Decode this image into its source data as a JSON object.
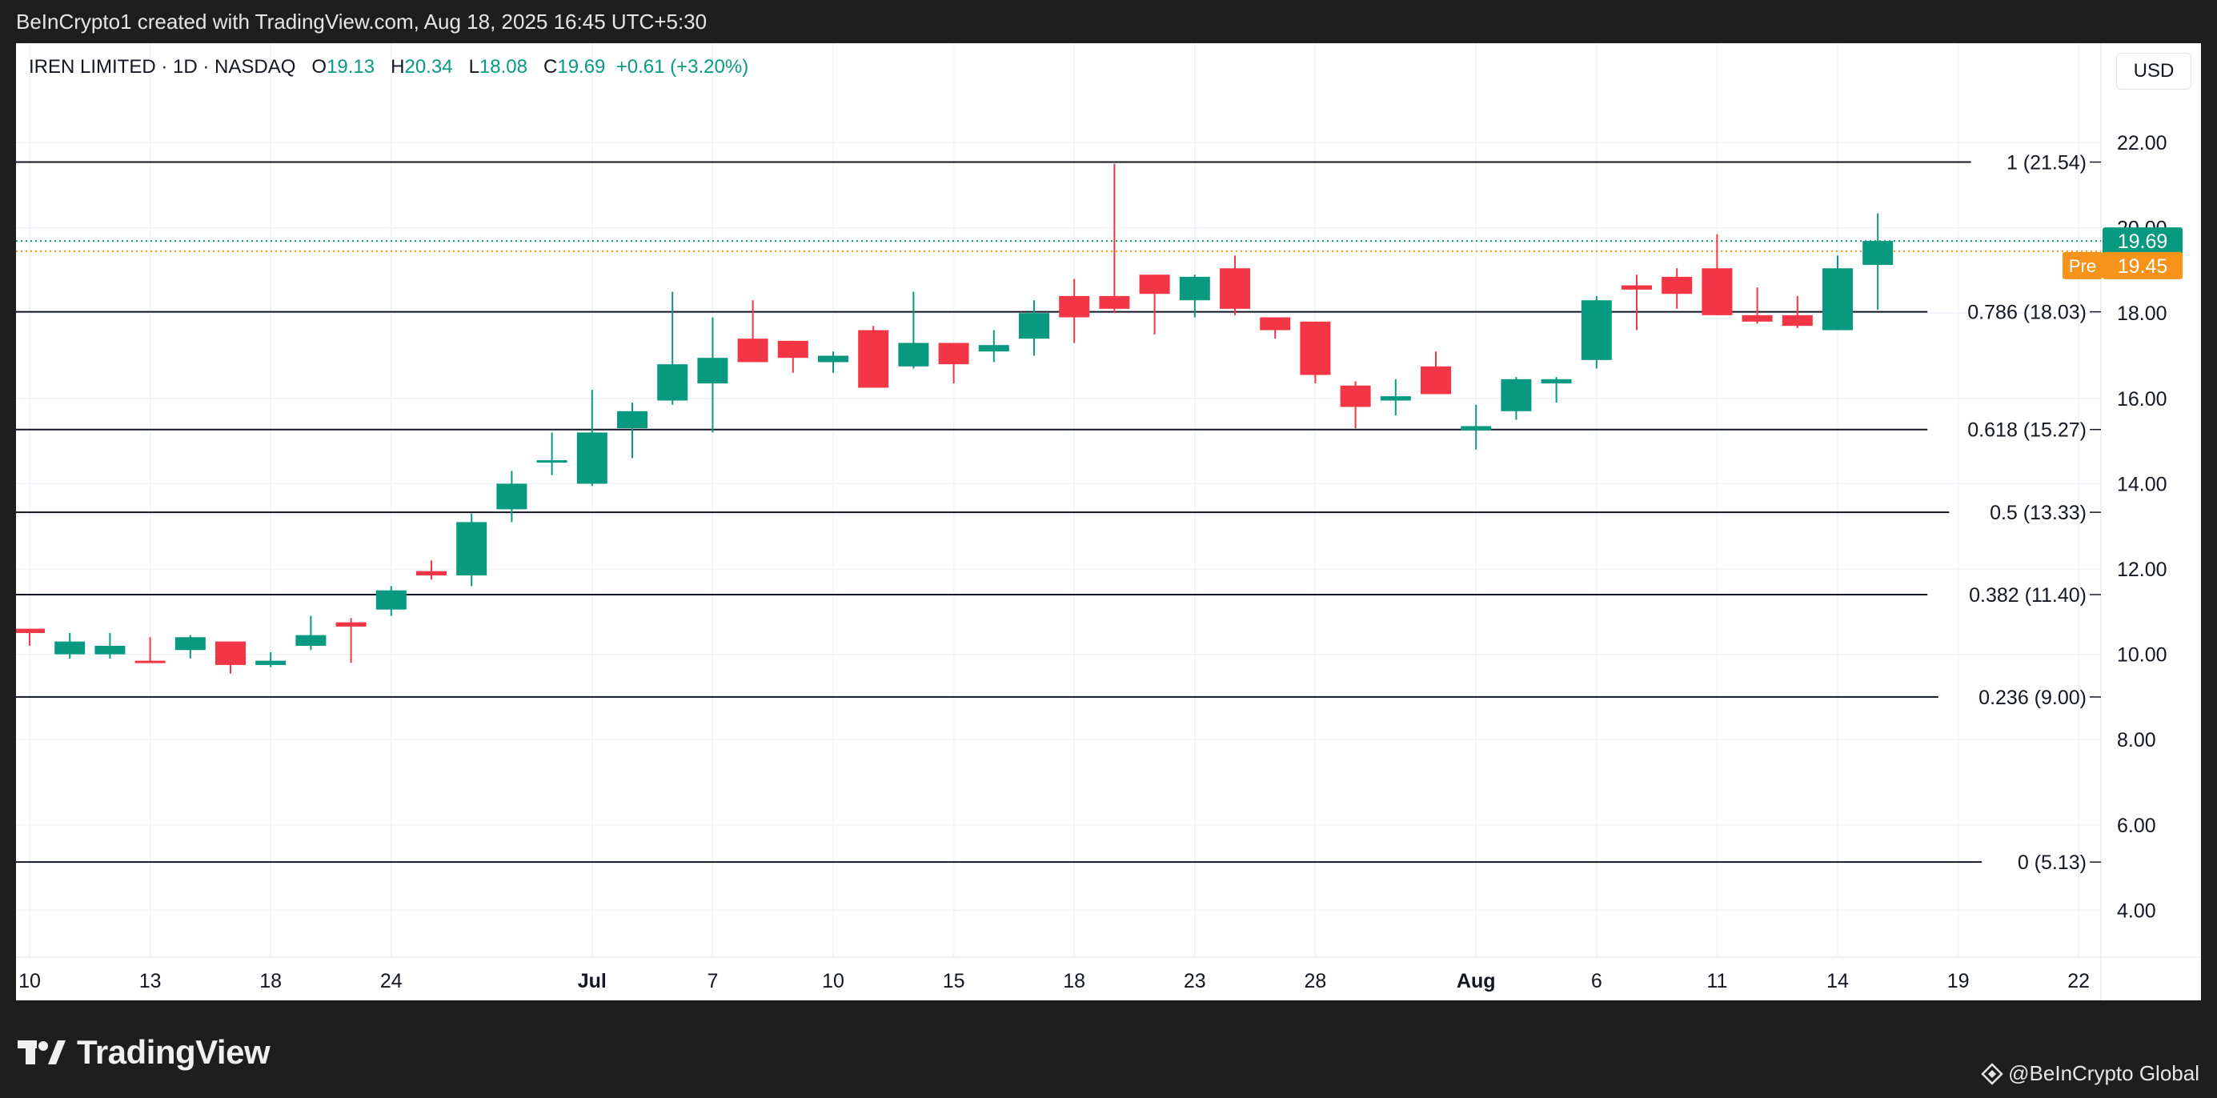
{
  "header": {
    "attribution": "BeInCrypto1 created with TradingView.com, Aug 18, 2025 16:45 UTC+5:30"
  },
  "legend": {
    "symbol": "IREN LIMITED · 1D · NASDAQ",
    "open_label": "O",
    "open": "19.13",
    "high_label": "H",
    "high": "20.34",
    "low_label": "L",
    "low": "18.08",
    "close_label": "C",
    "close": "19.69",
    "change": "+0.61 (+3.20%)"
  },
  "currency_button": "USD",
  "footer": {
    "brand": "TradingView",
    "credit": "@BeInCrypto Global"
  },
  "colors": {
    "up": "#089981",
    "down": "#f23645",
    "pre": "#f7931a"
  },
  "chart_data": {
    "type": "candlestick",
    "ylim": [
      3.2,
      22.9
    ],
    "y_ticks": [
      "4.00",
      "6.00",
      "8.00",
      "10.00",
      "12.00",
      "14.00",
      "16.00",
      "18.00",
      "20.00",
      "22.00"
    ],
    "x_ticks": [
      {
        "label": "10",
        "index": 0
      },
      {
        "label": "13",
        "index": 3
      },
      {
        "label": "18",
        "index": 6
      },
      {
        "label": "24",
        "index": 9
      },
      {
        "label": "Jul",
        "index": 14
      },
      {
        "label": "7",
        "index": 17
      },
      {
        "label": "10",
        "index": 20
      },
      {
        "label": "15",
        "index": 23
      },
      {
        "label": "18",
        "index": 26
      },
      {
        "label": "23",
        "index": 29
      },
      {
        "label": "28",
        "index": 32
      },
      {
        "label": "Aug",
        "index": 36
      },
      {
        "label": "6",
        "index": 39
      },
      {
        "label": "11",
        "index": 42
      },
      {
        "label": "14",
        "index": 45
      },
      {
        "label": "19",
        "index": 48
      },
      {
        "label": "22",
        "index": 51
      }
    ],
    "fib_levels": [
      {
        "label": "1 (21.54)",
        "value": 21.54
      },
      {
        "label": "0.786 (18.03)",
        "value": 18.03
      },
      {
        "label": "0.618 (15.27)",
        "value": 15.27
      },
      {
        "label": "0.5 (13.33)",
        "value": 13.33
      },
      {
        "label": "0.382 (11.40)",
        "value": 11.4
      },
      {
        "label": "0.236 (9.00)",
        "value": 9.0
      },
      {
        "label": "0 (5.13)",
        "value": 5.13
      }
    ],
    "last_price": {
      "value": 19.69,
      "label": "19.69"
    },
    "pre_market": {
      "value": 19.45,
      "label": "19.45",
      "tag": "Pre"
    },
    "candles": [
      {
        "o": 10.6,
        "h": 10.6,
        "l": 10.2,
        "c": 10.5
      },
      {
        "o": 10.0,
        "h": 10.5,
        "l": 9.9,
        "c": 10.3
      },
      {
        "o": 10.0,
        "h": 10.5,
        "l": 9.9,
        "c": 10.2
      },
      {
        "o": 9.85,
        "h": 10.4,
        "l": 9.8,
        "c": 9.8
      },
      {
        "o": 10.1,
        "h": 10.45,
        "l": 9.9,
        "c": 10.4
      },
      {
        "o": 10.3,
        "h": 10.3,
        "l": 9.55,
        "c": 9.75
      },
      {
        "o": 9.75,
        "h": 10.05,
        "l": 9.7,
        "c": 9.85
      },
      {
        "o": 10.2,
        "h": 10.9,
        "l": 10.1,
        "c": 10.45
      },
      {
        "o": 10.75,
        "h": 10.85,
        "l": 9.8,
        "c": 10.65
      },
      {
        "o": 11.05,
        "h": 11.6,
        "l": 10.9,
        "c": 11.5
      },
      {
        "o": 11.95,
        "h": 12.2,
        "l": 11.75,
        "c": 11.85
      },
      {
        "o": 11.85,
        "h": 13.3,
        "l": 11.6,
        "c": 13.1
      },
      {
        "o": 13.4,
        "h": 14.3,
        "l": 13.1,
        "c": 14.0
      },
      {
        "o": 14.5,
        "h": 15.2,
        "l": 14.2,
        "c": 14.55
      },
      {
        "o": 14.0,
        "h": 16.2,
        "l": 13.95,
        "c": 15.2
      },
      {
        "o": 15.3,
        "h": 15.9,
        "l": 14.6,
        "c": 15.7
      },
      {
        "o": 15.95,
        "h": 18.5,
        "l": 15.85,
        "c": 16.8
      },
      {
        "o": 16.35,
        "h": 17.9,
        "l": 15.2,
        "c": 16.95
      },
      {
        "o": 17.4,
        "h": 18.3,
        "l": 16.9,
        "c": 16.85
      },
      {
        "o": 17.35,
        "h": 17.35,
        "l": 16.6,
        "c": 16.95
      },
      {
        "o": 16.85,
        "h": 17.1,
        "l": 16.6,
        "c": 17.0
      },
      {
        "o": 17.6,
        "h": 17.7,
        "l": 16.25,
        "c": 16.25
      },
      {
        "o": 16.75,
        "h": 18.5,
        "l": 16.7,
        "c": 17.3
      },
      {
        "o": 17.3,
        "h": 17.3,
        "l": 16.35,
        "c": 16.8
      },
      {
        "o": 17.1,
        "h": 17.6,
        "l": 16.85,
        "c": 17.25
      },
      {
        "o": 17.4,
        "h": 18.3,
        "l": 17.0,
        "c": 18.0
      },
      {
        "o": 18.4,
        "h": 18.8,
        "l": 17.3,
        "c": 17.9
      },
      {
        "o": 18.4,
        "h": 21.5,
        "l": 18.0,
        "c": 18.1
      },
      {
        "o": 18.9,
        "h": 18.9,
        "l": 17.5,
        "c": 18.45
      },
      {
        "o": 18.3,
        "h": 18.9,
        "l": 17.9,
        "c": 18.85
      },
      {
        "o": 19.05,
        "h": 19.35,
        "l": 17.95,
        "c": 18.1
      },
      {
        "o": 17.9,
        "h": 17.9,
        "l": 17.4,
        "c": 17.6
      },
      {
        "o": 17.8,
        "h": 17.8,
        "l": 16.35,
        "c": 16.55
      },
      {
        "o": 16.3,
        "h": 16.4,
        "l": 15.3,
        "c": 15.8
      },
      {
        "o": 15.95,
        "h": 16.45,
        "l": 15.6,
        "c": 16.05
      },
      {
        "o": 16.75,
        "h": 17.1,
        "l": 16.1,
        "c": 16.1
      },
      {
        "o": 15.25,
        "h": 15.85,
        "l": 14.8,
        "c": 15.35
      },
      {
        "o": 15.7,
        "h": 16.5,
        "l": 15.5,
        "c": 16.45
      },
      {
        "o": 16.35,
        "h": 16.5,
        "l": 15.9,
        "c": 16.45
      },
      {
        "o": 16.9,
        "h": 18.4,
        "l": 16.7,
        "c": 18.3
      },
      {
        "o": 18.65,
        "h": 18.9,
        "l": 17.6,
        "c": 18.55
      },
      {
        "o": 18.85,
        "h": 19.05,
        "l": 18.1,
        "c": 18.45
      },
      {
        "o": 19.05,
        "h": 19.85,
        "l": 17.95,
        "c": 17.95
      },
      {
        "o": 17.95,
        "h": 18.6,
        "l": 17.75,
        "c": 17.8
      },
      {
        "o": 17.95,
        "h": 18.4,
        "l": 17.65,
        "c": 17.7
      },
      {
        "o": 17.6,
        "h": 19.35,
        "l": 17.6,
        "c": 19.05
      },
      {
        "o": 19.13,
        "h": 20.34,
        "l": 18.08,
        "c": 19.69
      }
    ]
  }
}
